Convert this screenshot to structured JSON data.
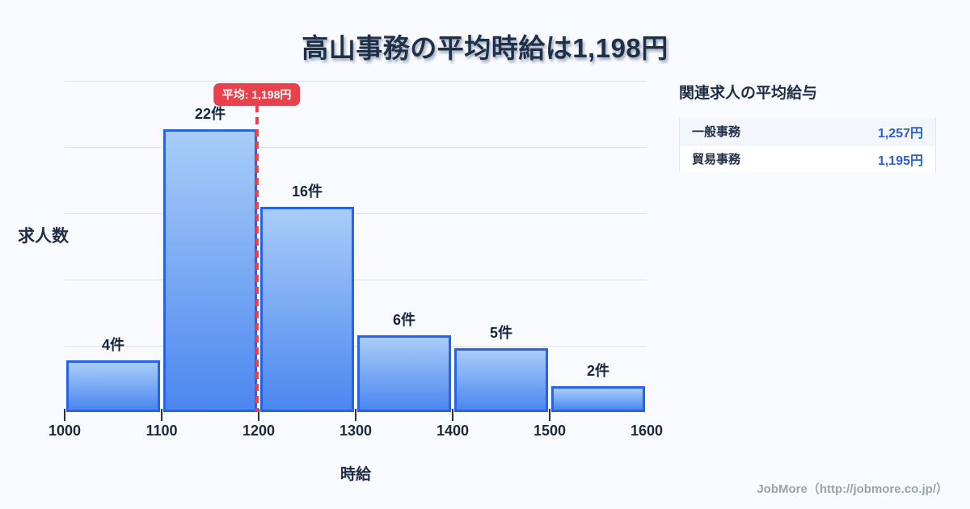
{
  "title": "高山事務の平均時給は1,198円",
  "chart_data": {
    "type": "bar",
    "title": "高山事務の平均時給は1,198円",
    "xlabel": "時給",
    "ylabel": "求人数",
    "bin_edges": [
      1000,
      1100,
      1200,
      1300,
      1400,
      1500,
      1600
    ],
    "values": [
      4,
      22,
      16,
      6,
      5,
      2
    ],
    "bar_labels": [
      "4件",
      "22件",
      "16件",
      "6件",
      "5件",
      "2件"
    ],
    "x_tick_labels": [
      "1000",
      "1100",
      "1200",
      "1300",
      "1400",
      "1500",
      "1600"
    ],
    "xlim": [
      1000,
      1600
    ],
    "ylim": [
      0,
      25.8
    ],
    "grid": "horizontal",
    "gridline_count": 5,
    "legend": "none",
    "mean_line": {
      "value": 1198,
      "label": "平均: 1,198円"
    }
  },
  "side_panel": {
    "title": "関連求人の平均給与",
    "rows": [
      {
        "label": "一般事務",
        "value": "1,257円"
      },
      {
        "label": "貿易事務",
        "value": "1,195円"
      }
    ]
  },
  "footer": {
    "credit": "JobMore（http://jobmore.co.jp/）"
  },
  "colors": {
    "background": "#f8fafd",
    "title_text": "#1f3049",
    "bar_border": "#2563eb",
    "bar_fill_top": "#a9cdf9",
    "bar_fill_bottom": "#4c87f0",
    "mean_line": "#e8414b",
    "mean_badge_bg": "#e8414b",
    "mean_badge_text": "#ffffff",
    "grid_line": "#dde1eb",
    "axis_text": "#1b2a3d",
    "value_text": "#2b5fd6",
    "row_alt_bg": "#f3f6fa",
    "footer_text": "#9aa2ad"
  }
}
